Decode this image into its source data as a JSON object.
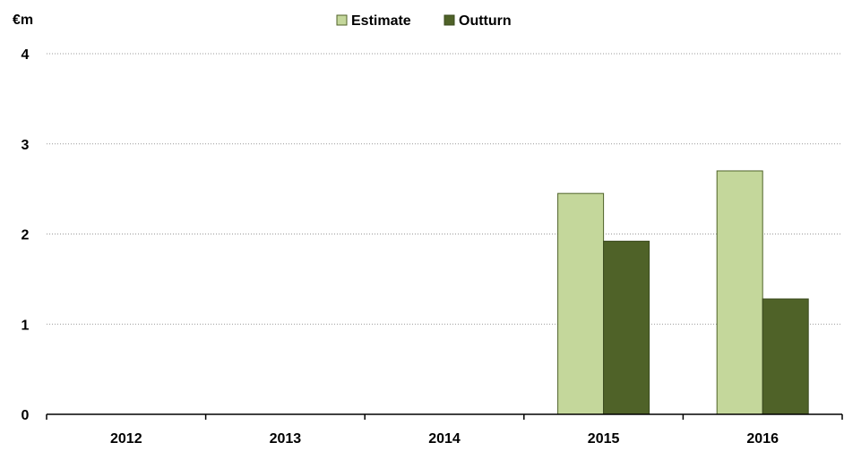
{
  "chart_data": {
    "type": "bar",
    "title": "",
    "ylabel": "€m",
    "xlabel": "",
    "categories": [
      "2012",
      "2013",
      "2014",
      "2015",
      "2016"
    ],
    "series": [
      {
        "name": "Estimate",
        "color": "#c4d79b",
        "values": [
          null,
          null,
          null,
          2.45,
          2.7
        ]
      },
      {
        "name": "Outturn",
        "color": "#4f6228",
        "values": [
          null,
          null,
          null,
          1.92,
          1.28
        ]
      }
    ],
    "ylim": [
      0,
      4
    ],
    "yticks": [
      "0",
      "1",
      "2",
      "3",
      "4"
    ],
    "grid": true,
    "legend_position": "top"
  }
}
